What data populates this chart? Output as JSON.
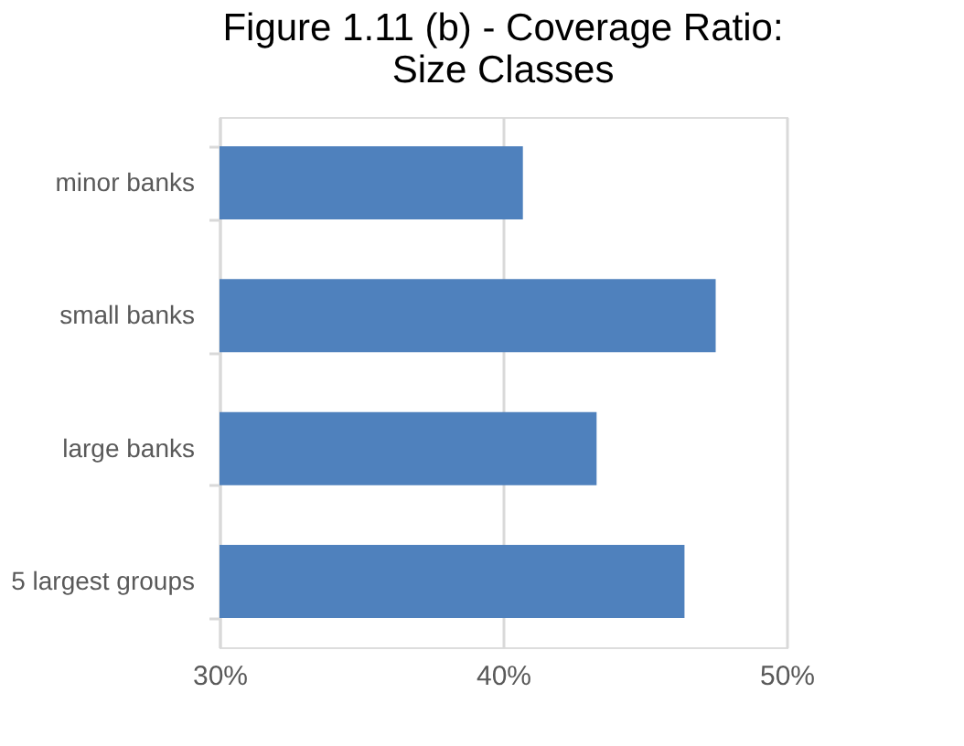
{
  "chart_data": {
    "type": "bar",
    "orientation": "horizontal",
    "title": "Figure 1.11 (b) - Coverage Ratio:\nSize Classes",
    "categories": [
      "minor banks",
      "small banks",
      "large banks",
      "5 largest groups"
    ],
    "values": [
      40.7,
      47.5,
      43.3,
      46.4
    ],
    "color": "#4f81bd",
    "xlim": [
      30,
      50
    ],
    "xticks": [
      {
        "value": 30,
        "label": "30%"
      },
      {
        "value": 40,
        "label": "40%"
      },
      {
        "value": 50,
        "label": "50%"
      }
    ],
    "grid": "x"
  }
}
